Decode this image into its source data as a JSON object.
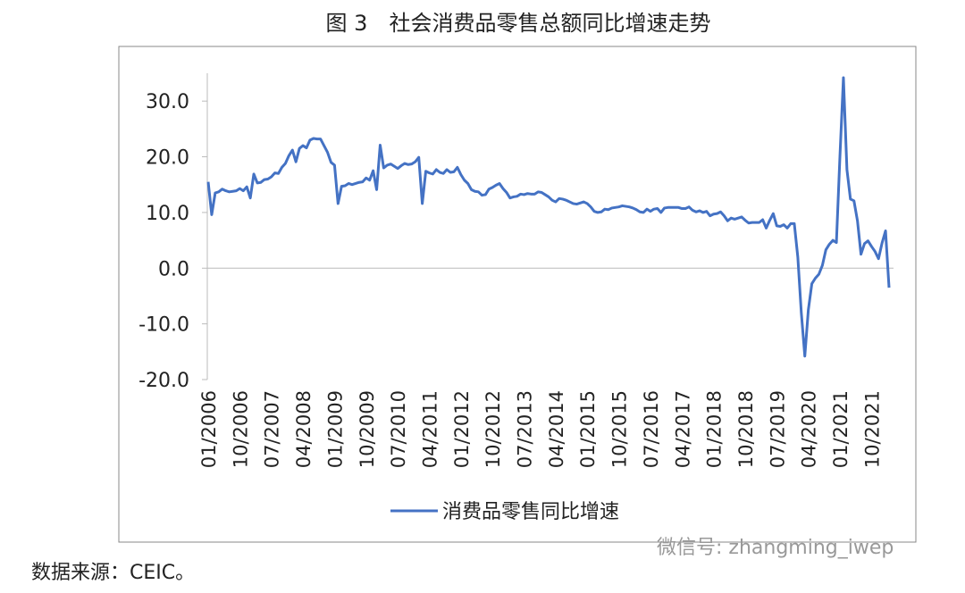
{
  "title": "图 3　社会消费品零售总额同比增速走势",
  "source": "数据来源：CEIC。",
  "watermark": "微信号: zhangming_iwep",
  "chart_data": {
    "type": "line",
    "categories": [
      "01/2006",
      null,
      null,
      null,
      null,
      null,
      null,
      null,
      null,
      "10/2006",
      null,
      null,
      null,
      null,
      null,
      null,
      null,
      null,
      "07/2007",
      null,
      null,
      null,
      null,
      null,
      null,
      null,
      null,
      "04/2008",
      null,
      null,
      null,
      null,
      null,
      null,
      null,
      null,
      "01/2009",
      null,
      null,
      null,
      null,
      null,
      null,
      null,
      null,
      "10/2009",
      null,
      null,
      null,
      null,
      null,
      null,
      null,
      null,
      "07/2010",
      null,
      null,
      null,
      null,
      null,
      null,
      null,
      null,
      "04/2011",
      null,
      null,
      null,
      null,
      null,
      null,
      null,
      null,
      "01/2012",
      null,
      null,
      null,
      null,
      null,
      null,
      null,
      null,
      "10/2012",
      null,
      null,
      null,
      null,
      null,
      null,
      null,
      null,
      "07/2013",
      null,
      null,
      null,
      null,
      null,
      null,
      null,
      null,
      "04/2014",
      null,
      null,
      null,
      null,
      null,
      null,
      null,
      null,
      "01/2015",
      null,
      null,
      null,
      null,
      null,
      null,
      null,
      null,
      "10/2015",
      null,
      null,
      null,
      null,
      null,
      null,
      null,
      null,
      "07/2016",
      null,
      null,
      null,
      null,
      null,
      null,
      null,
      null,
      "04/2017",
      null,
      null,
      null,
      null,
      null,
      null,
      null,
      null,
      "01/2018",
      null,
      null,
      null,
      null,
      null,
      null,
      null,
      null,
      "10/2018",
      null,
      null,
      null,
      null,
      null,
      null,
      null,
      null,
      "07/2019",
      null,
      null,
      null,
      null,
      null,
      null,
      null,
      null,
      "04/2020",
      null,
      null,
      null,
      null,
      null,
      null,
      null,
      null,
      "01/2021",
      null,
      null,
      null,
      null,
      null,
      null,
      null,
      null,
      "10/2021",
      null,
      null,
      null,
      null,
      null
    ],
    "series": [
      {
        "name": "消费品零售同比增速",
        "color": "#4472c4",
        "values": [
          15.5,
          9.6,
          13.5,
          13.7,
          14.2,
          13.9,
          13.7,
          13.8,
          13.9,
          14.3,
          13.9,
          14.6,
          12.6,
          16.9,
          15.3,
          15.4,
          15.9,
          16.0,
          16.4,
          17.1,
          17.0,
          18.1,
          18.8,
          20.2,
          21.2,
          19.1,
          21.5,
          22.0,
          21.6,
          23.0,
          23.3,
          23.2,
          23.2,
          22.0,
          20.8,
          19.0,
          18.5,
          11.6,
          14.7,
          14.8,
          15.2,
          15.0,
          15.2,
          15.4,
          15.5,
          16.2,
          15.8,
          17.5,
          14.1,
          22.1,
          18.0,
          18.5,
          18.7,
          18.3,
          17.9,
          18.4,
          18.8,
          18.6,
          18.7,
          19.1,
          19.9,
          11.6,
          17.4,
          17.1,
          16.9,
          17.7,
          17.2,
          17.0,
          17.7,
          17.2,
          17.3,
          18.1,
          16.8,
          15.8,
          15.2,
          14.1,
          13.8,
          13.7,
          13.1,
          13.2,
          14.2,
          14.5,
          14.9,
          15.2,
          14.3,
          13.6,
          12.6,
          12.8,
          12.9,
          13.3,
          13.2,
          13.4,
          13.3,
          13.3,
          13.7,
          13.6,
          13.2,
          12.8,
          12.2,
          11.9,
          12.5,
          12.4,
          12.2,
          11.9,
          11.6,
          11.5,
          11.7,
          11.9,
          11.6,
          11.0,
          10.2,
          10.0,
          10.1,
          10.6,
          10.5,
          10.8,
          10.9,
          11.0,
          11.2,
          11.1,
          11.0,
          10.8,
          10.5,
          10.1,
          10.0,
          10.6,
          10.2,
          10.6,
          10.7,
          10.0,
          10.8,
          10.9,
          10.9,
          10.9,
          10.9,
          10.7,
          10.7,
          11.0,
          10.4,
          10.1,
          10.3,
          10.0,
          10.2,
          9.4,
          9.7,
          9.8,
          10.1,
          9.4,
          8.5,
          9.0,
          8.8,
          9.0,
          9.2,
          8.6,
          8.1,
          8.2,
          8.2,
          8.2,
          8.7,
          7.2,
          8.6,
          9.8,
          7.6,
          7.5,
          7.8,
          7.2,
          8.0,
          8.0,
          2.0,
          -8.0,
          -15.8,
          -7.5,
          -2.8,
          -1.8,
          -1.1,
          0.5,
          3.3,
          4.3,
          5.0,
          4.6,
          20.0,
          34.2,
          17.7,
          12.4,
          12.1,
          8.5,
          2.5,
          4.4,
          4.9,
          3.9,
          3.0,
          1.7,
          4.5,
          6.7,
          -3.5
        ]
      }
    ],
    "ylim": [
      -20,
      35
    ],
    "yticks": [
      {
        "value": -20,
        "label": "-20.0"
      },
      {
        "value": -10,
        "label": "-10.0"
      },
      {
        "value": 0,
        "label": "0.0"
      },
      {
        "value": 10,
        "label": "10.0"
      },
      {
        "value": 20,
        "label": "20.0"
      },
      {
        "value": 30,
        "label": "30.0"
      }
    ]
  }
}
